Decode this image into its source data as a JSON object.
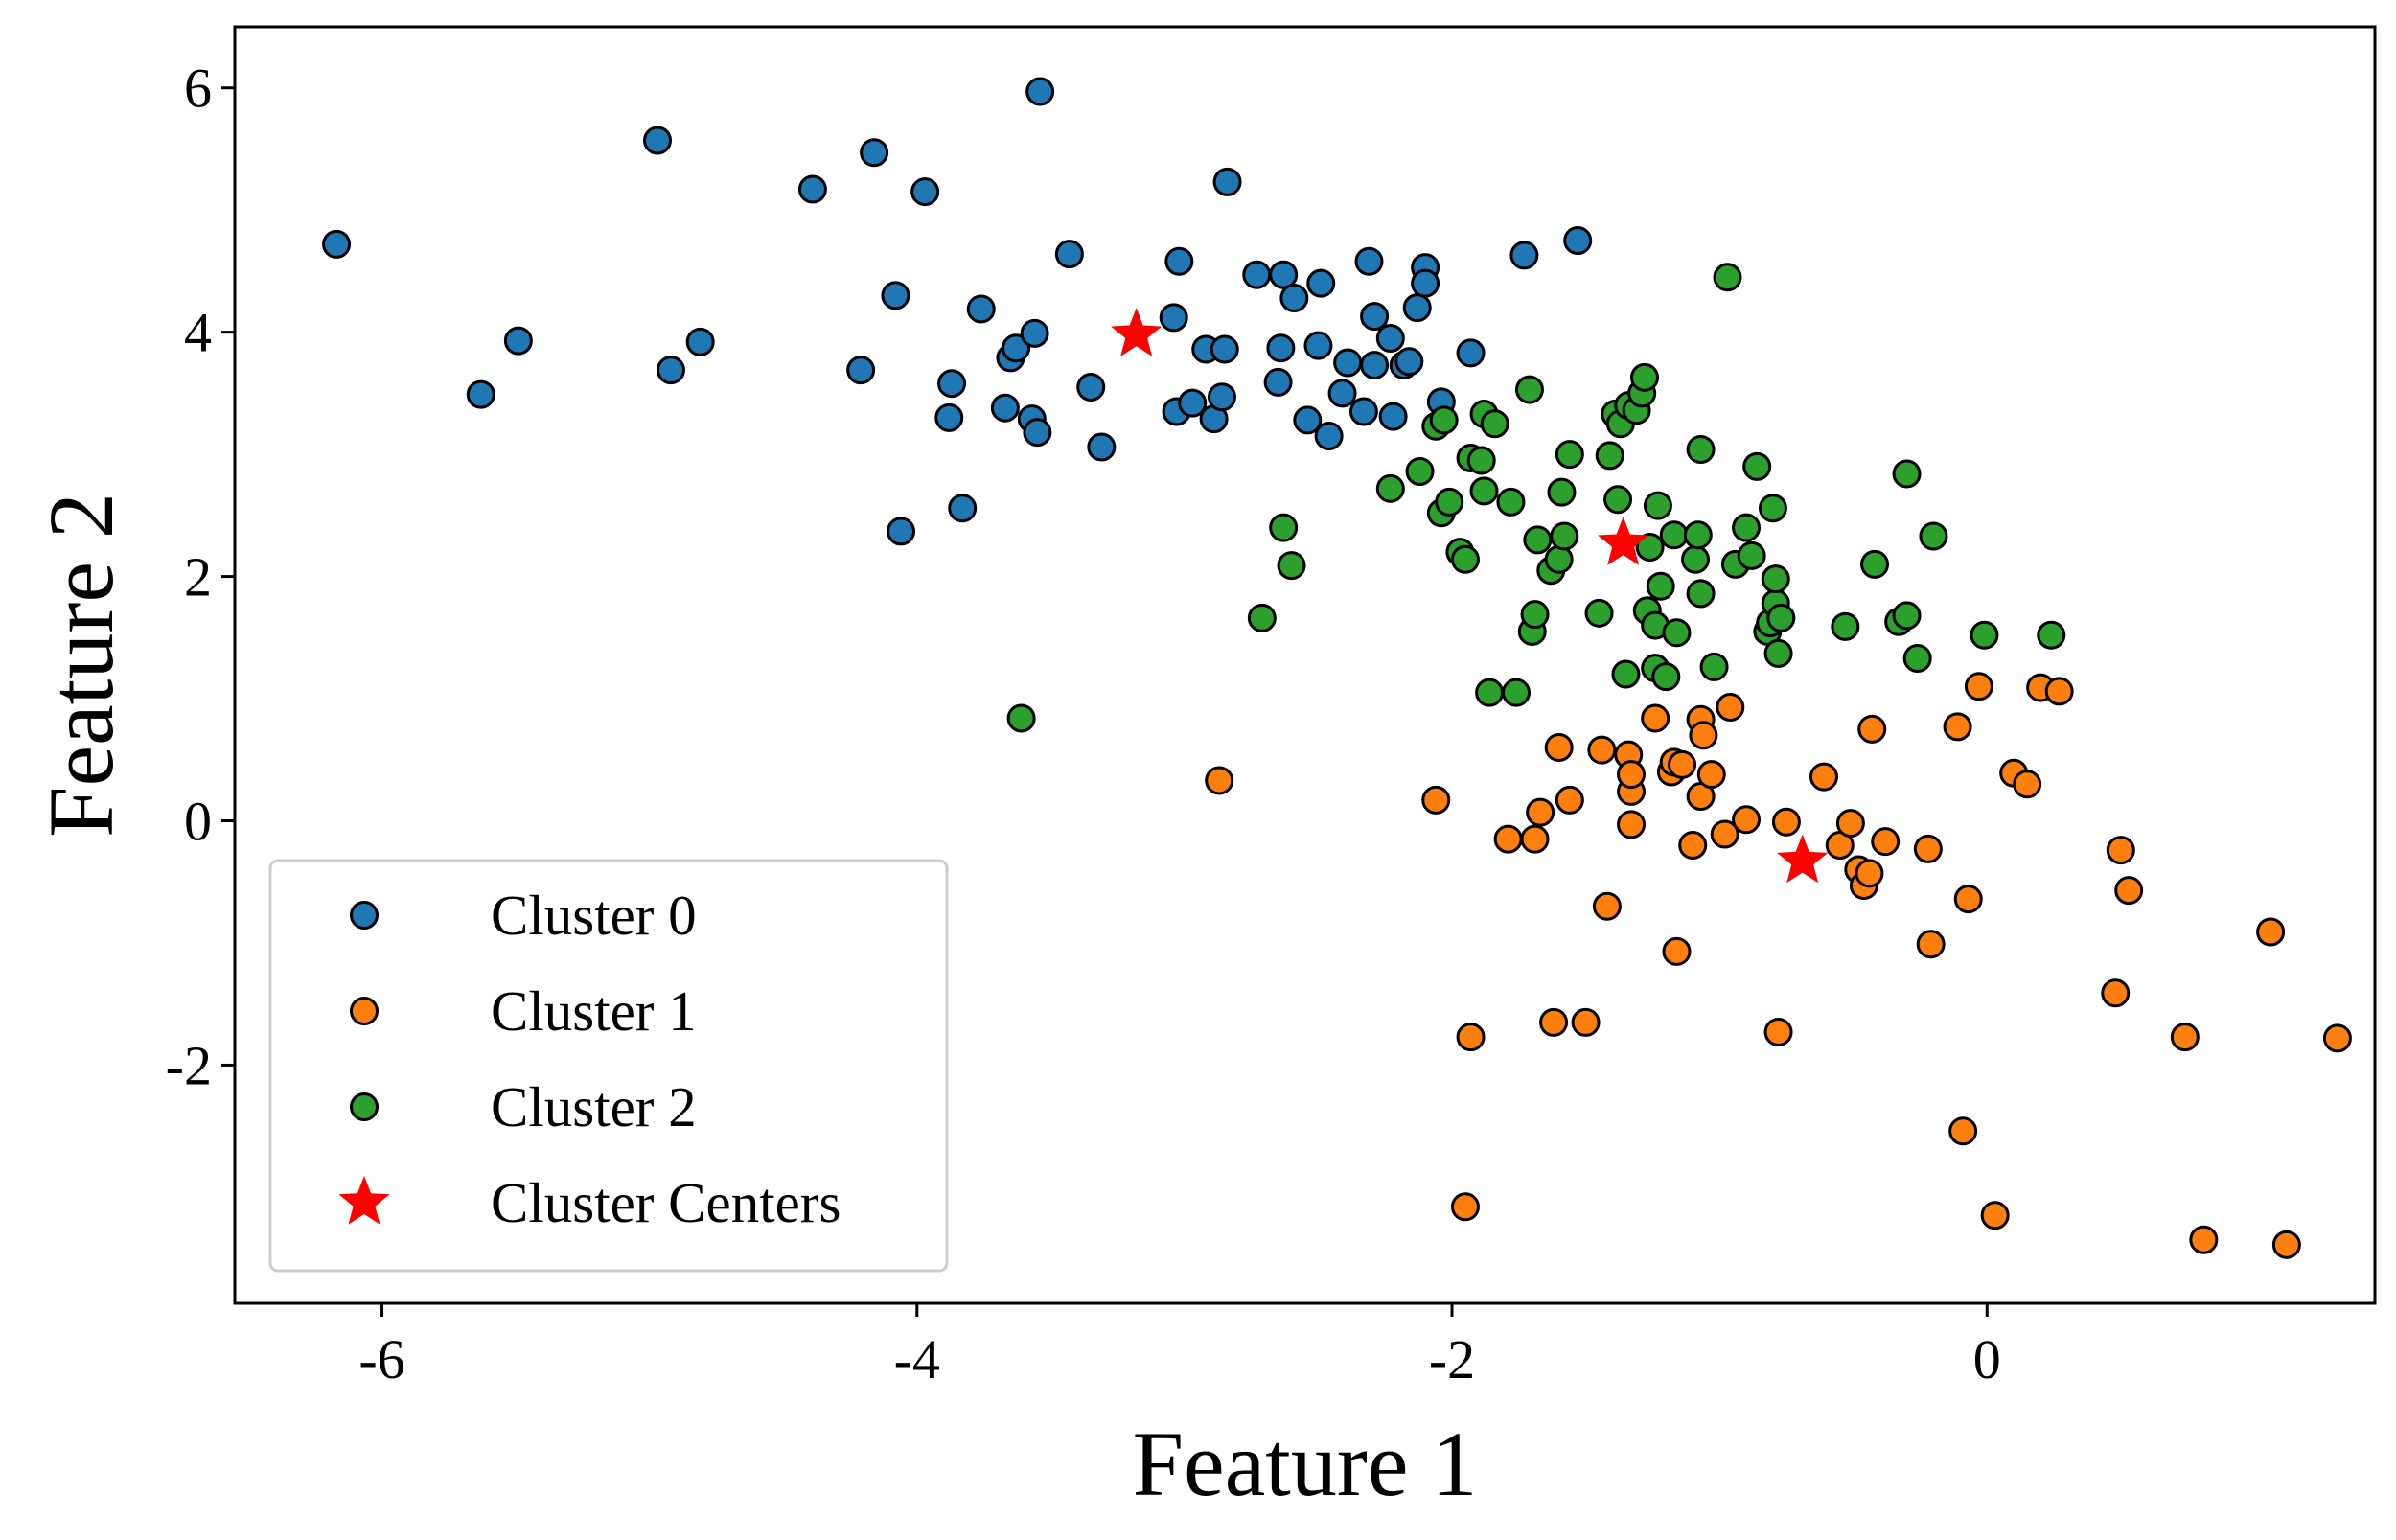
{
  "chart_data": {
    "type": "scatter",
    "xlabel": "Feature 1",
    "ylabel": "Feature 2",
    "xlim": [
      -6.55,
      1.45
    ],
    "ylim": [
      -3.95,
      6.5
    ],
    "xticks": [
      -6,
      -4,
      -2,
      0
    ],
    "xtick_labels": [
      "-6",
      "-4",
      "-2",
      "0"
    ],
    "yticks": [
      -2,
      0,
      2,
      4,
      6
    ],
    "ytick_labels": [
      "-2",
      "0",
      "2",
      "4",
      "6"
    ],
    "grid": false,
    "legend_position": "lower-left",
    "series": [
      {
        "name": "Cluster 0",
        "color": "#1f77b4",
        "marker": "circle",
        "points": [
          [
            -6.17,
            4.72
          ],
          [
            -5.63,
            3.49
          ],
          [
            -5.49,
            3.93
          ],
          [
            -4.97,
            5.57
          ],
          [
            -4.92,
            3.69
          ],
          [
            -4.81,
            3.92
          ],
          [
            -4.39,
            5.17
          ],
          [
            -4.21,
            3.69
          ],
          [
            -4.16,
            5.47
          ],
          [
            -4.08,
            4.3
          ],
          [
            -4.06,
            2.37
          ],
          [
            -3.97,
            5.15
          ],
          [
            -3.88,
            3.3
          ],
          [
            -3.87,
            3.58
          ],
          [
            -3.83,
            2.56
          ],
          [
            -3.76,
            4.19
          ],
          [
            -3.67,
            3.38
          ],
          [
            -3.65,
            3.79
          ],
          [
            -3.63,
            3.87
          ],
          [
            -3.57,
            3.29
          ],
          [
            -3.56,
            3.99
          ],
          [
            -3.55,
            3.18
          ],
          [
            -3.54,
            5.97
          ],
          [
            -3.43,
            4.64
          ],
          [
            -3.35,
            3.55
          ],
          [
            -3.31,
            3.06
          ],
          [
            -3.04,
            4.12
          ],
          [
            -3.03,
            3.35
          ],
          [
            -3.02,
            4.58
          ],
          [
            -2.97,
            3.42
          ],
          [
            -2.92,
            3.86
          ],
          [
            -2.89,
            3.29
          ],
          [
            -2.86,
            3.47
          ],
          [
            -2.85,
            3.86
          ],
          [
            -2.84,
            5.23
          ],
          [
            -2.73,
            4.47
          ],
          [
            -2.65,
            3.59
          ],
          [
            -2.64,
            3.87
          ],
          [
            -2.63,
            4.47
          ],
          [
            -2.59,
            4.28
          ],
          [
            -2.54,
            3.28
          ],
          [
            -2.5,
            3.89
          ],
          [
            -2.49,
            4.4
          ],
          [
            -2.46,
            3.15
          ],
          [
            -2.41,
            3.5
          ],
          [
            -2.39,
            3.75
          ],
          [
            -2.33,
            3.35
          ],
          [
            -2.31,
            4.58
          ],
          [
            -2.29,
            4.13
          ],
          [
            -2.29,
            3.73
          ],
          [
            -2.23,
            3.95
          ],
          [
            -2.22,
            3.31
          ],
          [
            -2.18,
            3.73
          ],
          [
            -2.16,
            3.76
          ],
          [
            -2.13,
            4.2
          ],
          [
            -2.1,
            4.53
          ],
          [
            -2.1,
            4.4
          ],
          [
            -2.04,
            3.43
          ],
          [
            -1.93,
            3.83
          ],
          [
            -1.73,
            4.63
          ],
          [
            -1.53,
            4.75
          ]
        ]
      },
      {
        "name": "Cluster 1",
        "color": "#ff7f0e",
        "marker": "circle",
        "points": [
          [
            -2.87,
            0.33
          ],
          [
            -2.06,
            0.17
          ],
          [
            -1.93,
            -1.77
          ],
          [
            -1.95,
            -3.16
          ],
          [
            -1.79,
            -0.15
          ],
          [
            -1.69,
            -0.15
          ],
          [
            -1.67,
            0.07
          ],
          [
            -1.62,
            -1.65
          ],
          [
            -1.6,
            0.6
          ],
          [
            -1.56,
            0.17
          ],
          [
            -1.5,
            -1.65
          ],
          [
            -1.44,
            0.58
          ],
          [
            -1.42,
            -0.7
          ],
          [
            -1.34,
            0.54
          ],
          [
            -1.33,
            0.24
          ],
          [
            -1.33,
            -0.03
          ],
          [
            -1.33,
            0.38
          ],
          [
            -1.24,
            0.84
          ],
          [
            -1.18,
            0.4
          ],
          [
            -1.17,
            0.48
          ],
          [
            -1.16,
            -1.07
          ],
          [
            -1.14,
            0.46
          ],
          [
            -1.1,
            -0.2
          ],
          [
            -1.07,
            0.2
          ],
          [
            -1.07,
            0.83
          ],
          [
            -1.06,
            0.7
          ],
          [
            -1.03,
            0.38
          ],
          [
            -0.98,
            -0.11
          ],
          [
            -0.96,
            0.93
          ],
          [
            -0.9,
            0.01
          ],
          [
            -0.78,
            -1.73
          ],
          [
            -0.75,
            -0.01
          ],
          [
            -0.61,
            0.36
          ],
          [
            -0.55,
            -0.2
          ],
          [
            -0.51,
            -0.02
          ],
          [
            -0.48,
            -0.4
          ],
          [
            -0.46,
            -0.53
          ],
          [
            -0.44,
            -0.43
          ],
          [
            -0.43,
            0.75
          ],
          [
            -0.38,
            -0.17
          ],
          [
            -0.22,
            -0.23
          ],
          [
            -0.21,
            -1.01
          ],
          [
            -0.11,
            0.77
          ],
          [
            -0.09,
            -2.54
          ],
          [
            -0.07,
            -0.64
          ],
          [
            -0.03,
            1.1
          ],
          [
            0.03,
            -3.23
          ],
          [
            0.1,
            0.39
          ],
          [
            0.15,
            0.3
          ],
          [
            0.2,
            1.09
          ],
          [
            0.27,
            1.06
          ],
          [
            0.48,
            -1.41
          ],
          [
            0.5,
            -0.24
          ],
          [
            0.53,
            -0.57
          ],
          [
            0.74,
            -1.77
          ],
          [
            0.81,
            -3.43
          ],
          [
            1.06,
            -0.91
          ],
          [
            1.12,
            -3.47
          ],
          [
            1.31,
            -1.78
          ]
        ]
      },
      {
        "name": "Cluster 2",
        "color": "#2ca02c",
        "marker": "circle",
        "points": [
          [
            -3.61,
            0.84
          ],
          [
            -2.71,
            1.66
          ],
          [
            -2.63,
            2.4
          ],
          [
            -2.6,
            2.09
          ],
          [
            -2.23,
            2.72
          ],
          [
            -2.12,
            2.86
          ],
          [
            -2.06,
            3.23
          ],
          [
            -2.04,
            2.52
          ],
          [
            -2.03,
            3.28
          ],
          [
            -2.01,
            2.61
          ],
          [
            -1.97,
            2.2
          ],
          [
            -1.95,
            2.14
          ],
          [
            -1.93,
            2.97
          ],
          [
            -1.89,
            2.95
          ],
          [
            -1.88,
            3.33
          ],
          [
            -1.88,
            2.7
          ],
          [
            -1.86,
            1.05
          ],
          [
            -1.84,
            3.25
          ],
          [
            -1.78,
            2.61
          ],
          [
            -1.76,
            1.05
          ],
          [
            -1.71,
            3.53
          ],
          [
            -1.7,
            1.55
          ],
          [
            -1.69,
            1.69
          ],
          [
            -1.68,
            2.3
          ],
          [
            -1.63,
            2.05
          ],
          [
            -1.6,
            2.14
          ],
          [
            -1.59,
            2.69
          ],
          [
            -1.58,
            2.33
          ],
          [
            -1.56,
            3.0
          ],
          [
            -1.45,
            1.7
          ],
          [
            -1.41,
            2.99
          ],
          [
            -1.39,
            3.33
          ],
          [
            -1.38,
            2.63
          ],
          [
            -1.37,
            3.25
          ],
          [
            -1.35,
            1.2
          ],
          [
            -1.34,
            3.4
          ],
          [
            -1.31,
            3.36
          ],
          [
            -1.29,
            3.5
          ],
          [
            -1.28,
            3.63
          ],
          [
            -1.27,
            1.72
          ],
          [
            -1.26,
            2.24
          ],
          [
            -1.24,
            1.6
          ],
          [
            -1.24,
            1.25
          ],
          [
            -1.23,
            2.58
          ],
          [
            -1.22,
            1.92
          ],
          [
            -1.2,
            1.18
          ],
          [
            -1.17,
            2.34
          ],
          [
            -1.16,
            1.54
          ],
          [
            -1.09,
            2.14
          ],
          [
            -1.08,
            2.34
          ],
          [
            -1.07,
            1.86
          ],
          [
            -1.07,
            3.04
          ],
          [
            -1.02,
            1.26
          ],
          [
            -0.97,
            4.45
          ],
          [
            -0.94,
            2.1
          ],
          [
            -0.9,
            2.4
          ],
          [
            -0.88,
            2.17
          ],
          [
            -0.86,
            2.9
          ],
          [
            -0.82,
            1.55
          ],
          [
            -0.81,
            1.62
          ],
          [
            -0.8,
            2.56
          ],
          [
            -0.79,
            1.78
          ],
          [
            -0.79,
            1.98
          ],
          [
            -0.78,
            1.37
          ],
          [
            -0.77,
            1.66
          ],
          [
            -0.53,
            1.59
          ],
          [
            -0.42,
            2.1
          ],
          [
            -0.33,
            1.63
          ],
          [
            -0.3,
            1.68
          ],
          [
            -0.3,
            2.84
          ],
          [
            -0.26,
            1.33
          ],
          [
            -0.2,
            2.33
          ],
          [
            -0.01,
            1.52
          ],
          [
            0.24,
            1.52
          ]
        ]
      },
      {
        "name": "Cluster Centers",
        "color": "#ff0000",
        "marker": "star",
        "points": [
          [
            -3.18,
            3.98
          ],
          [
            -1.36,
            2.27
          ],
          [
            -0.69,
            -0.33
          ]
        ]
      }
    ]
  }
}
